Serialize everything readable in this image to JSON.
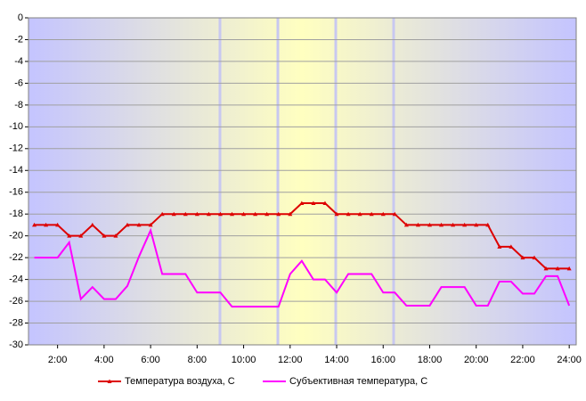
{
  "chart_data": {
    "type": "line",
    "x": [
      1,
      1.5,
      2,
      2.5,
      3,
      3.5,
      4,
      4.5,
      5,
      5.5,
      6,
      6.5,
      7,
      7.5,
      8,
      8.5,
      9,
      9.5,
      10,
      10.5,
      11,
      11.5,
      12,
      12.5,
      13,
      13.5,
      14,
      14.5,
      15,
      15.5,
      16,
      16.5,
      17,
      17.5,
      18,
      18.5,
      19,
      19.5,
      20,
      20.5,
      21,
      21.5,
      22,
      22.5,
      23,
      23.5,
      24
    ],
    "series": [
      {
        "name": "Температура воздуха, С",
        "color": "#dd0000",
        "marker": true,
        "values": [
          -19,
          -19,
          -19,
          -20,
          -20,
          -19,
          -20,
          -20,
          -19,
          -19,
          -19,
          -18,
          -18,
          -18,
          -18,
          -18,
          -18,
          -18,
          -18,
          -18,
          -18,
          -18,
          -18,
          -17,
          -17,
          -17,
          -18,
          -18,
          -18,
          -18,
          -18,
          -18,
          -19,
          -19,
          -19,
          -19,
          -19,
          -19,
          -19,
          -19,
          -21,
          -21,
          -22,
          -22,
          -23,
          -23,
          -23
        ]
      },
      {
        "name": "Субъективная температура, С",
        "color": "#ff00ff",
        "marker": false,
        "values": [
          -22,
          -22,
          -22,
          -20.6,
          -25.8,
          -24.7,
          -25.8,
          -25.8,
          -24.6,
          -21.9,
          -19.5,
          -23.5,
          -23.5,
          -23.5,
          -25.2,
          -25.2,
          -25.2,
          -26.5,
          -26.5,
          -26.5,
          -26.5,
          -26.5,
          -23.5,
          -22.3,
          -24,
          -24,
          -25.2,
          -23.5,
          -23.5,
          -23.5,
          -25.2,
          -25.2,
          -26.4,
          -26.4,
          -26.4,
          -24.7,
          -24.7,
          -24.7,
          -26.4,
          -26.4,
          -24.2,
          -24.2,
          -25.3,
          -25.3,
          -23.7,
          -23.7,
          -26.4
        ]
      }
    ],
    "xlim": [
      0.75,
      24.3
    ],
    "xticks": [
      {
        "value": 2,
        "label": "2:00"
      },
      {
        "value": 4,
        "label": "4:00"
      },
      {
        "value": 6,
        "label": "6:00"
      },
      {
        "value": 8,
        "label": "8:00"
      },
      {
        "value": 10,
        "label": "10:00"
      },
      {
        "value": 12,
        "label": "12:00"
      },
      {
        "value": 14,
        "label": "14:00"
      },
      {
        "value": 16,
        "label": "16:00"
      },
      {
        "value": 18,
        "label": "18:00"
      },
      {
        "value": 20,
        "label": "20:00"
      },
      {
        "value": 22,
        "label": "22:00"
      },
      {
        "value": 24,
        "label": "24:00"
      }
    ],
    "ylim": [
      -30,
      0
    ],
    "yticks": [
      0,
      -2,
      -4,
      -6,
      -8,
      -10,
      -12,
      -14,
      -16,
      -18,
      -20,
      -22,
      -24,
      -26,
      -28,
      -30
    ],
    "grid": true,
    "legend": "bottom"
  }
}
